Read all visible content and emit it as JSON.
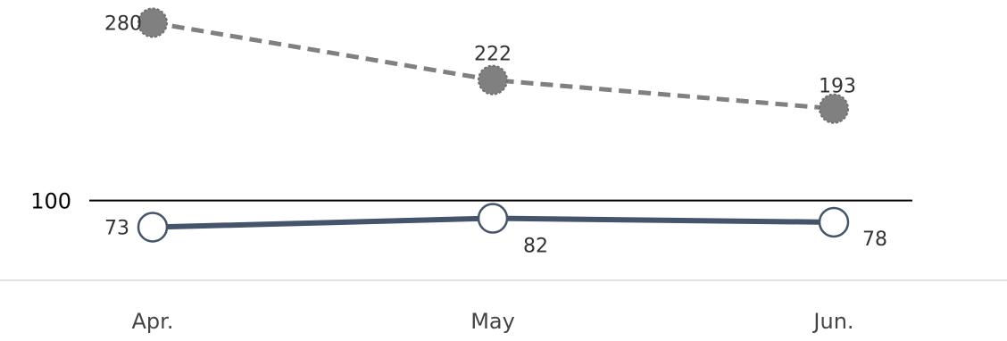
{
  "chart_data": {
    "type": "line",
    "categories": [
      "Apr.",
      "May",
      "Jun."
    ],
    "series": [
      {
        "values": [
          280,
          222,
          193
        ],
        "color": "#808080",
        "style": "dashed",
        "marker": "filled-circle"
      },
      {
        "values": [
          73,
          82,
          78
        ],
        "color": "#44546a",
        "style": "solid",
        "marker": "hollow-circle"
      }
    ],
    "reference_line": {
      "value": 100,
      "label": "100",
      "color": "#000000"
    },
    "ylim": [
      57,
      317
    ],
    "grid": false,
    "legend": "none"
  }
}
